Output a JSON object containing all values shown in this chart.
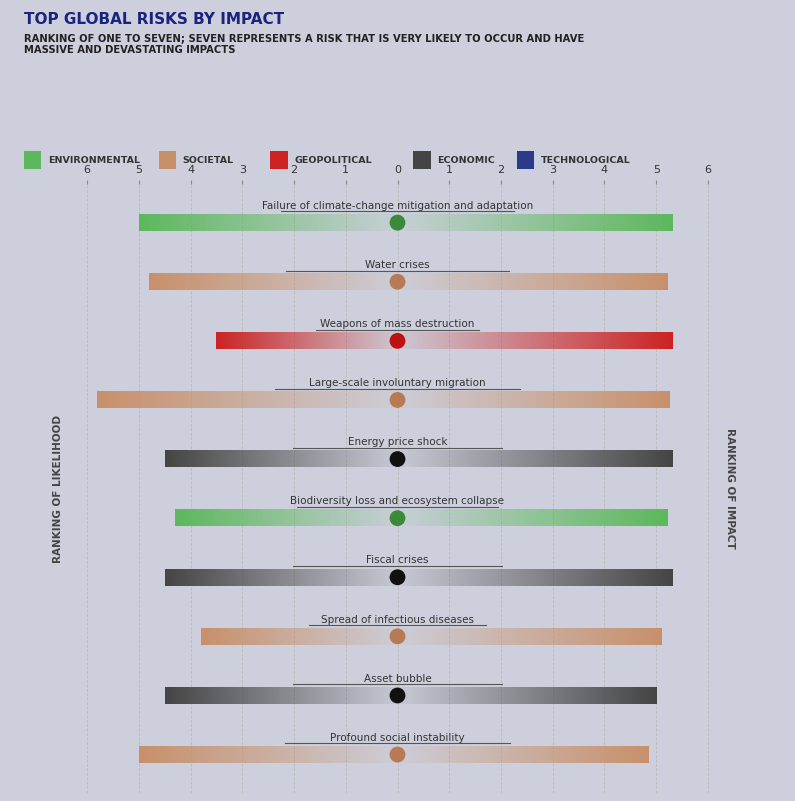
{
  "title": "TOP GLOBAL RISKS BY IMPACT",
  "subtitle": "RANKING OF ONE TO SEVEN; SEVEN REPRESENTS A RISK THAT IS VERY LIKELY TO OCCUR AND HAVE\nMASSIVE AND DEVASTATING IMPACTS",
  "background_color": "#cdd0dc",
  "title_color": "#1a237e",
  "subtitle_color": "#222222",
  "categories": [
    {
      "label": "Failure of climate-change mitigation and adaptation",
      "type": "environmental",
      "likelihood": -5.0,
      "impact": 5.3
    },
    {
      "label": "Water crises",
      "type": "societal",
      "likelihood": -4.8,
      "impact": 5.2
    },
    {
      "label": "Weapons of mass destruction",
      "type": "geopolitical",
      "likelihood": -3.5,
      "impact": 5.3
    },
    {
      "label": "Large-scale involuntary migration",
      "type": "societal",
      "likelihood": -5.8,
      "impact": 5.25
    },
    {
      "label": "Energy price shock",
      "type": "economic",
      "likelihood": -4.5,
      "impact": 5.3
    },
    {
      "label": "Biodiversity loss and ecosystem collapse",
      "type": "environmental",
      "likelihood": -4.3,
      "impact": 5.2
    },
    {
      "label": "Fiscal crises",
      "type": "economic",
      "likelihood": -4.5,
      "impact": 5.3
    },
    {
      "label": "Spread of infectious diseases",
      "type": "societal",
      "likelihood": -3.8,
      "impact": 5.1
    },
    {
      "label": "Asset bubble",
      "type": "economic",
      "likelihood": -4.5,
      "impact": 5.0
    },
    {
      "label": "Profound social instability",
      "type": "societal",
      "likelihood": -5.0,
      "impact": 4.85
    }
  ],
  "category_colors": {
    "environmental": "#5cb85c",
    "societal": "#c8906a",
    "geopolitical": "#cc2222",
    "economic": "#444444",
    "technological": "#2b3a8a"
  },
  "dot_colors": {
    "environmental": "#3a8a3a",
    "societal": "#b87a55",
    "geopolitical": "#bb1111",
    "economic": "#111111",
    "technological": "#2b3a8a"
  },
  "legend": [
    {
      "label": "ENVIRONMENTAL",
      "type": "environmental"
    },
    {
      "label": "SOCIETAL",
      "type": "societal"
    },
    {
      "label": "GEOPOLITICAL",
      "type": "geopolitical"
    },
    {
      "label": "ECONOMIC",
      "type": "economic"
    },
    {
      "label": "TECHNOLOGICAL",
      "type": "technological"
    }
  ],
  "ylabel_left": "RANKING OF LIKELIHOOD",
  "ylabel_right": "RANKING OF IMPACT",
  "xlim": [
    -6.3,
    6.3
  ],
  "xticks": [
    -6,
    -5,
    -4,
    -3,
    -2,
    -1,
    0,
    1,
    2,
    3,
    4,
    5,
    6
  ],
  "xtick_labels": [
    "6",
    "5",
    "4",
    "3",
    "2",
    "1",
    "0",
    "1",
    "2",
    "3",
    "4",
    "5",
    "6"
  ]
}
